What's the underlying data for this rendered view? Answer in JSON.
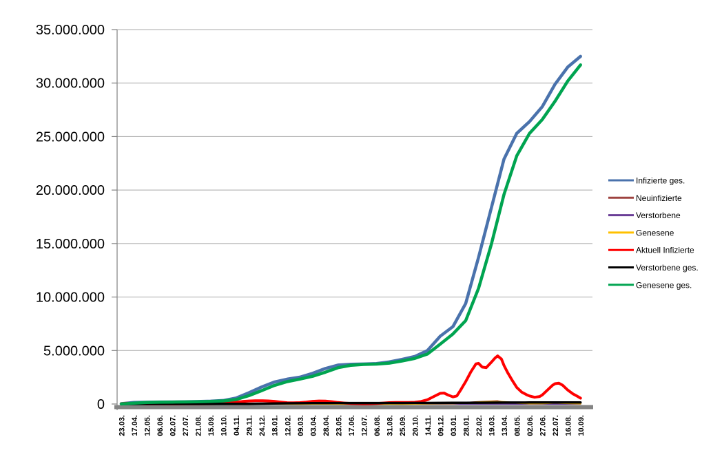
{
  "chart_data": {
    "type": "line",
    "title": "",
    "xlabel": "",
    "ylabel": "",
    "grid": true,
    "legend_position": "right",
    "x_labels": [
      "23.03.",
      "17.04.",
      "12.05.",
      "06.06.",
      "02.07.",
      "27.07.",
      "21.08.",
      "15.09.",
      "10.10.",
      "04.11.",
      "29.11.",
      "24.12.",
      "18.01.",
      "12.02.",
      "09.03.",
      "03.04.",
      "28.04.",
      "23.05.",
      "17.06.",
      "12.07.",
      "06.08.",
      "31.08.",
      "25.09.",
      "20.10.",
      "14.11.",
      "09.12.",
      "03.01.",
      "28.01.",
      "22.02.",
      "19.03.",
      "13.04.",
      "08.05.",
      "02.06.",
      "27.06.",
      "22.07.",
      "16.08.",
      "10.09."
    ],
    "y_axis": {
      "min": 0,
      "max": 35000000,
      "step": 5000000,
      "tick_labels": [
        "0",
        "5.000.000",
        "10.000.000",
        "15.000.000",
        "20.000.000",
        "25.000.000",
        "30.000.000",
        "35.000.000"
      ]
    },
    "colors": {
      "gridline": "#a8a8a8",
      "axis_line": "#808080",
      "axis_band": "#848484",
      "text": "#000000"
    },
    "series": [
      {
        "name": "Infizierte ges.",
        "color": "#4a72ac",
        "width": 4.5,
        "points_millions": [
          [
            0,
            0.03
          ],
          [
            1,
            0.14
          ],
          [
            2,
            0.17
          ],
          [
            3,
            0.185
          ],
          [
            4,
            0.195
          ],
          [
            5,
            0.207
          ],
          [
            6,
            0.232
          ],
          [
            7,
            0.265
          ],
          [
            8,
            0.325
          ],
          [
            9,
            0.56
          ],
          [
            10,
            1.05
          ],
          [
            11,
            1.59
          ],
          [
            12,
            2.05
          ],
          [
            13,
            2.32
          ],
          [
            14,
            2.51
          ],
          [
            15,
            2.87
          ],
          [
            16,
            3.32
          ],
          [
            17,
            3.64
          ],
          [
            18,
            3.72
          ],
          [
            19,
            3.74
          ],
          [
            20,
            3.78
          ],
          [
            21,
            3.94
          ],
          [
            22,
            4.17
          ],
          [
            23,
            4.44
          ],
          [
            24,
            5.0
          ],
          [
            25,
            6.34
          ],
          [
            26,
            7.24
          ],
          [
            27,
            9.4
          ],
          [
            28,
            13.7
          ],
          [
            29,
            18.3
          ],
          [
            30,
            22.9
          ],
          [
            31,
            25.3
          ],
          [
            32,
            26.4
          ],
          [
            33,
            27.8
          ],
          [
            34,
            29.9
          ],
          [
            35,
            31.5
          ],
          [
            36,
            32.5
          ]
        ]
      },
      {
        "name": "Neuinfizierte",
        "color": "#9e4340",
        "width": 2.5,
        "points_millions": [
          [
            0,
            0.004
          ],
          [
            4,
            0.004
          ],
          [
            8,
            0.005
          ],
          [
            9,
            0.015
          ],
          [
            10,
            0.022
          ],
          [
            11,
            0.025
          ],
          [
            12,
            0.018
          ],
          [
            13,
            0.009
          ],
          [
            14,
            0.009
          ],
          [
            15,
            0.02
          ],
          [
            16,
            0.022
          ],
          [
            17,
            0.008
          ],
          [
            18,
            0.003
          ],
          [
            19,
            0.002
          ],
          [
            20,
            0.004
          ],
          [
            21,
            0.01
          ],
          [
            22,
            0.008
          ],
          [
            23,
            0.012
          ],
          [
            24,
            0.04
          ],
          [
            25,
            0.06
          ],
          [
            26,
            0.05
          ],
          [
            27,
            0.12
          ],
          [
            28,
            0.19
          ],
          [
            29,
            0.25
          ],
          [
            29.5,
            0.27
          ],
          [
            30,
            0.16
          ],
          [
            31,
            0.07
          ],
          [
            32,
            0.04
          ],
          [
            33,
            0.07
          ],
          [
            34,
            0.09
          ],
          [
            35,
            0.05
          ],
          [
            36,
            0.03
          ]
        ]
      },
      {
        "name": "Verstorbene",
        "color": "#6a3d96",
        "width": 2,
        "points_millions": [
          [
            0,
            0.0002
          ],
          [
            10,
            0.0005
          ],
          [
            12,
            0.001
          ],
          [
            14,
            0.0008
          ],
          [
            20,
            0.0002
          ],
          [
            25,
            0.0005
          ],
          [
            28,
            0.0004
          ],
          [
            36,
            0.0002
          ]
        ]
      },
      {
        "name": "Genesene",
        "color": "#ffc000",
        "width": 2.5,
        "points_millions": [
          [
            0,
            0.002
          ],
          [
            8,
            0.004
          ],
          [
            10,
            0.018
          ],
          [
            11,
            0.022
          ],
          [
            12,
            0.02
          ],
          [
            13,
            0.012
          ],
          [
            14,
            0.008
          ],
          [
            15,
            0.015
          ],
          [
            16,
            0.02
          ],
          [
            17,
            0.012
          ],
          [
            18,
            0.005
          ],
          [
            19,
            0.002
          ],
          [
            20,
            0.003
          ],
          [
            21,
            0.008
          ],
          [
            22,
            0.008
          ],
          [
            23,
            0.01
          ],
          [
            24,
            0.03
          ],
          [
            25,
            0.05
          ],
          [
            26,
            0.055
          ],
          [
            27,
            0.1
          ],
          [
            28,
            0.17
          ],
          [
            29,
            0.21
          ],
          [
            30,
            0.19
          ],
          [
            31,
            0.1
          ],
          [
            32,
            0.05
          ],
          [
            33,
            0.06
          ],
          [
            34,
            0.11
          ],
          [
            35,
            0.07
          ],
          [
            36,
            0.04
          ]
        ]
      },
      {
        "name": "Aktuell Infizierte",
        "color": "#ff0000",
        "width": 4,
        "points_millions": [
          [
            0,
            0.03
          ],
          [
            0.4,
            0.072
          ],
          [
            1,
            0.056
          ],
          [
            1.5,
            0.035
          ],
          [
            2,
            0.019
          ],
          [
            3,
            0.01
          ],
          [
            4,
            0.009
          ],
          [
            5,
            0.012
          ],
          [
            6,
            0.018
          ],
          [
            7,
            0.024
          ],
          [
            8,
            0.04
          ],
          [
            9,
            0.17
          ],
          [
            9.5,
            0.24
          ],
          [
            10,
            0.28
          ],
          [
            10.5,
            0.3
          ],
          [
            11,
            0.31
          ],
          [
            11.5,
            0.29
          ],
          [
            12,
            0.25
          ],
          [
            12.5,
            0.18
          ],
          [
            13,
            0.12
          ],
          [
            13.5,
            0.11
          ],
          [
            14,
            0.13
          ],
          [
            14.5,
            0.18
          ],
          [
            15,
            0.25
          ],
          [
            15.5,
            0.28
          ],
          [
            16,
            0.27
          ],
          [
            16.5,
            0.22
          ],
          [
            17,
            0.14
          ],
          [
            17.5,
            0.09
          ],
          [
            18,
            0.05
          ],
          [
            18.5,
            0.03
          ],
          [
            19,
            0.018
          ],
          [
            19.5,
            0.025
          ],
          [
            20,
            0.05
          ],
          [
            20.5,
            0.09
          ],
          [
            21,
            0.13
          ],
          [
            21.5,
            0.15
          ],
          [
            22,
            0.15
          ],
          [
            22.5,
            0.14
          ],
          [
            23,
            0.16
          ],
          [
            23.5,
            0.24
          ],
          [
            24,
            0.4
          ],
          [
            24.5,
            0.7
          ],
          [
            25,
            1.0
          ],
          [
            25.3,
            1.02
          ],
          [
            25.6,
            0.85
          ],
          [
            26,
            0.66
          ],
          [
            26.3,
            0.75
          ],
          [
            26.6,
            1.3
          ],
          [
            27,
            2.1
          ],
          [
            27.4,
            3.0
          ],
          [
            27.8,
            3.75
          ],
          [
            28,
            3.8
          ],
          [
            28.3,
            3.45
          ],
          [
            28.6,
            3.4
          ],
          [
            29,
            3.9
          ],
          [
            29.3,
            4.3
          ],
          [
            29.5,
            4.5
          ],
          [
            29.8,
            4.2
          ],
          [
            30,
            3.6
          ],
          [
            30.3,
            2.9
          ],
          [
            30.6,
            2.3
          ],
          [
            31,
            1.55
          ],
          [
            31.4,
            1.1
          ],
          [
            31.8,
            0.85
          ],
          [
            32,
            0.75
          ],
          [
            32.4,
            0.63
          ],
          [
            32.8,
            0.7
          ],
          [
            33,
            0.85
          ],
          [
            33.4,
            1.3
          ],
          [
            33.8,
            1.75
          ],
          [
            34,
            1.9
          ],
          [
            34.3,
            1.95
          ],
          [
            34.6,
            1.75
          ],
          [
            35,
            1.3
          ],
          [
            35.4,
            0.95
          ],
          [
            35.7,
            0.75
          ],
          [
            36,
            0.55
          ]
        ]
      },
      {
        "name": "Verstorbene ges.",
        "color": "#000000",
        "width": 3.5,
        "points_millions": [
          [
            0,
            0.001
          ],
          [
            2,
            0.007
          ],
          [
            4,
            0.009
          ],
          [
            6,
            0.009
          ],
          [
            8,
            0.01
          ],
          [
            9,
            0.011
          ],
          [
            10,
            0.016
          ],
          [
            11,
            0.029
          ],
          [
            12,
            0.047
          ],
          [
            13,
            0.064
          ],
          [
            14,
            0.072
          ],
          [
            15,
            0.077
          ],
          [
            16,
            0.082
          ],
          [
            17,
            0.087
          ],
          [
            18,
            0.09
          ],
          [
            19,
            0.091
          ],
          [
            20,
            0.092
          ],
          [
            21,
            0.092
          ],
          [
            22,
            0.093
          ],
          [
            23,
            0.095
          ],
          [
            24,
            0.098
          ],
          [
            25,
            0.104
          ],
          [
            26,
            0.112
          ],
          [
            27,
            0.117
          ],
          [
            28,
            0.121
          ],
          [
            29,
            0.126
          ],
          [
            30,
            0.132
          ],
          [
            31,
            0.136
          ],
          [
            32,
            0.139
          ],
          [
            33,
            0.14
          ],
          [
            34,
            0.142
          ],
          [
            35,
            0.145
          ],
          [
            36,
            0.147
          ]
        ]
      },
      {
        "name": "Genesene ges.",
        "color": "#00a450",
        "width": 4.5,
        "points_millions": [
          [
            0,
            0.008
          ],
          [
            1,
            0.08
          ],
          [
            2,
            0.15
          ],
          [
            3,
            0.17
          ],
          [
            4,
            0.183
          ],
          [
            5,
            0.194
          ],
          [
            6,
            0.21
          ],
          [
            7,
            0.24
          ],
          [
            8,
            0.29
          ],
          [
            9,
            0.42
          ],
          [
            10,
            0.78
          ],
          [
            11,
            1.25
          ],
          [
            12,
            1.73
          ],
          [
            13,
            2.09
          ],
          [
            14,
            2.33
          ],
          [
            15,
            2.59
          ],
          [
            16,
            2.97
          ],
          [
            17,
            3.4
          ],
          [
            18,
            3.62
          ],
          [
            19,
            3.7
          ],
          [
            20,
            3.73
          ],
          [
            21,
            3.82
          ],
          [
            22,
            4.02
          ],
          [
            23,
            4.26
          ],
          [
            24,
            4.67
          ],
          [
            25,
            5.6
          ],
          [
            26,
            6.55
          ],
          [
            27,
            7.8
          ],
          [
            28,
            10.8
          ],
          [
            29,
            14.9
          ],
          [
            30,
            19.6
          ],
          [
            31,
            23.2
          ],
          [
            32,
            25.3
          ],
          [
            33,
            26.6
          ],
          [
            34,
            28.3
          ],
          [
            35,
            30.2
          ],
          [
            36,
            31.7
          ]
        ]
      }
    ]
  }
}
